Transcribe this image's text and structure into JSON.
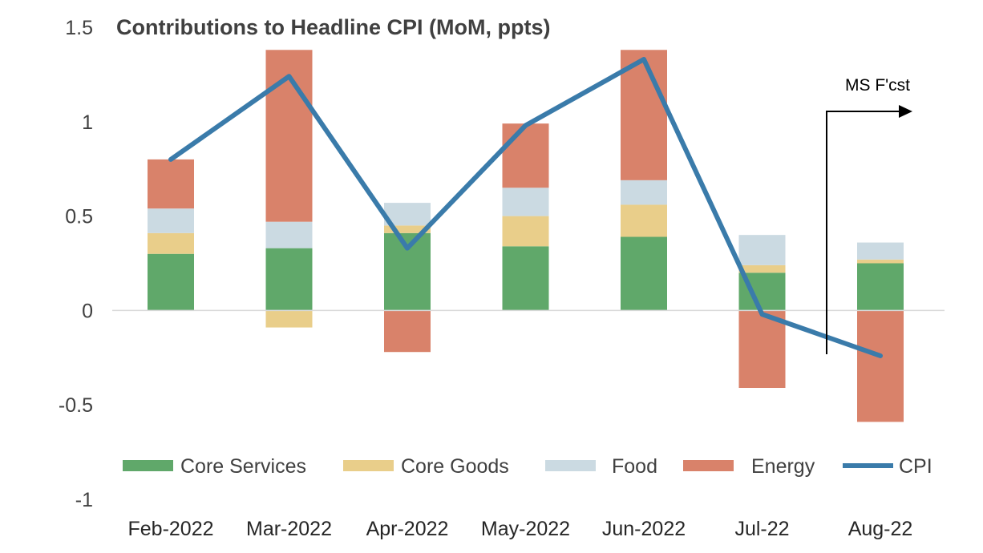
{
  "chart_data": {
    "type": "bar",
    "stacked": true,
    "title": "Contributions  to Headline CPI (MoM, ppts)",
    "categories": [
      "Feb-2022",
      "Mar-2022",
      "Apr-2022",
      "May-2022",
      "Jun-2022",
      "Jul-22",
      "Aug-22"
    ],
    "series": [
      {
        "name": "Core Services",
        "type": "bar",
        "color": "#60A86A",
        "values": [
          0.3,
          0.33,
          0.41,
          0.34,
          0.39,
          0.2,
          0.25
        ]
      },
      {
        "name": "Core Goods",
        "type": "bar",
        "color": "#E9CE8A",
        "values": [
          0.11,
          -0.09,
          0.04,
          0.16,
          0.17,
          0.04,
          0.02
        ]
      },
      {
        "name": "Food",
        "type": "bar",
        "color": "#CBDAE2",
        "values": [
          0.13,
          0.14,
          0.12,
          0.15,
          0.13,
          0.16,
          0.09
        ]
      },
      {
        "name": "Energy",
        "type": "bar",
        "color": "#D9826A",
        "values": [
          0.26,
          0.91,
          -0.22,
          0.34,
          0.7,
          -0.41,
          -0.59
        ]
      },
      {
        "name": "CPI",
        "type": "line",
        "color": "#3A7BAA",
        "values": [
          0.8,
          1.24,
          0.33,
          0.98,
          1.33,
          -0.02,
          -0.24
        ]
      }
    ],
    "ylim": [
      -1,
      1.5
    ],
    "yticks": [
      {
        "value": 1.5,
        "label": "1.5"
      },
      {
        "value": 1,
        "label": "1"
      },
      {
        "value": 0.5,
        "label": "0.5"
      },
      {
        "value": 0,
        "label": "0"
      },
      {
        "value": -0.5,
        "label": "-0.5"
      },
      {
        "value": -1,
        "label": "-1"
      }
    ],
    "bar_clip_max": 1.38,
    "legend_position": "bottom",
    "grid": false,
    "annotations": [
      {
        "text": "MS F'cst",
        "arrow": "right"
      }
    ]
  }
}
